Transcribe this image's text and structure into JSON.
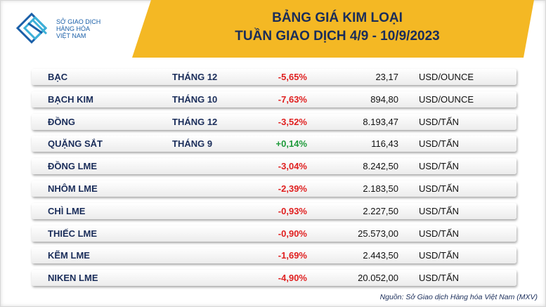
{
  "header": {
    "logo": [
      "SỞ GIAO DỊCH",
      "HÀNG HÓA",
      "VIỆT NAM"
    ],
    "title": [
      "BẢNG GIÁ KIM LOẠI",
      "TUẦN GIAO DỊCH 4/9 - 10/9/2023"
    ]
  },
  "table": {
    "rows": [
      {
        "name": "BẠC",
        "month": "THÁNG 12",
        "change": "-5,65%",
        "price": "23,17",
        "unit": "USD/OUNCE"
      },
      {
        "name": "BẠCH KIM",
        "month": "THÁNG 10",
        "change": "-7,63%",
        "price": "894,80",
        "unit": "USD/OUNCE"
      },
      {
        "name": "ĐỒNG",
        "month": "THÁNG 12",
        "change": "-3,52%",
        "price": "8.193,47",
        "unit": "USD/TẤN"
      },
      {
        "name": "QUẶNG SẮT",
        "month": "THÁNG 9",
        "change": "+0,14%",
        "price": "116,43",
        "unit": "USD/TẤN"
      },
      {
        "name": "ĐỒNG LME",
        "change": "-3,04%",
        "price": "8.242,50",
        "unit": "USD/TẤN"
      },
      {
        "name": "NHÔM LME",
        "change": "-2,39%",
        "price": "2.183,50",
        "unit": "USD/TẤN"
      },
      {
        "name": "CHÌ LME",
        "change": "-0,93%",
        "price": "2.227,50",
        "unit": "USD/TẤN"
      },
      {
        "name": "THIẾC LME",
        "change": "-0,90%",
        "price": "25.573,00",
        "unit": "USD/TẤN"
      },
      {
        "name": "KẼM LME",
        "change": "-1,69%",
        "price": "2.443,50",
        "unit": "USD/TẤN"
      },
      {
        "name": "NIKEN LME",
        "change": "-4,90%",
        "price": "20.052,00",
        "unit": "USD/TẤN"
      }
    ]
  },
  "source": "Nguồn: Sở Giao dịch Hàng hóa Việt Nam (MXV)"
}
